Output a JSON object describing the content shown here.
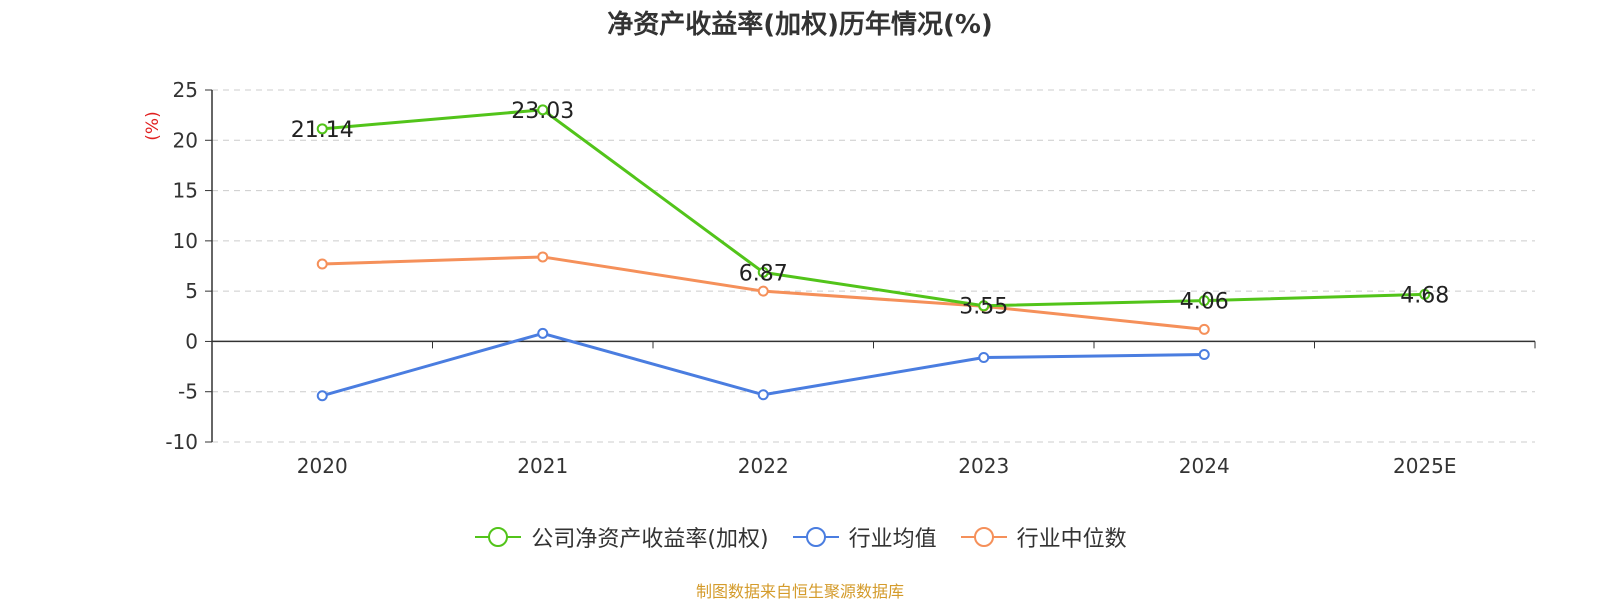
{
  "chart_data": {
    "type": "line",
    "title": "净资产收益率(加权)历年情况(%)",
    "ylabel": "(%)",
    "categories": [
      "2020",
      "2021",
      "2022",
      "2023",
      "2024",
      "2025E"
    ],
    "ylim": [
      -10,
      25
    ],
    "yticks": [
      25,
      20,
      15,
      10,
      5,
      0,
      -5,
      -10
    ],
    "grid": true,
    "legend_position": "bottom",
    "series": [
      {
        "name": "公司净资产收益率(加权)",
        "color": "#52c41a",
        "values": [
          21.14,
          23.03,
          6.87,
          3.55,
          4.06,
          4.68
        ],
        "labels": [
          "21.14",
          "23.03",
          "6.87",
          "3.55",
          "4.06",
          "4.68"
        ]
      },
      {
        "name": "行业均值",
        "color": "#4a7de0",
        "values": [
          -5.4,
          0.8,
          -5.3,
          -1.6,
          -1.3,
          null
        ]
      },
      {
        "name": "行业中位数",
        "color": "#f5905a",
        "values": [
          7.7,
          8.4,
          5.0,
          3.5,
          1.2,
          null
        ]
      }
    ]
  },
  "source": "制图数据来自恒生聚源数据库"
}
